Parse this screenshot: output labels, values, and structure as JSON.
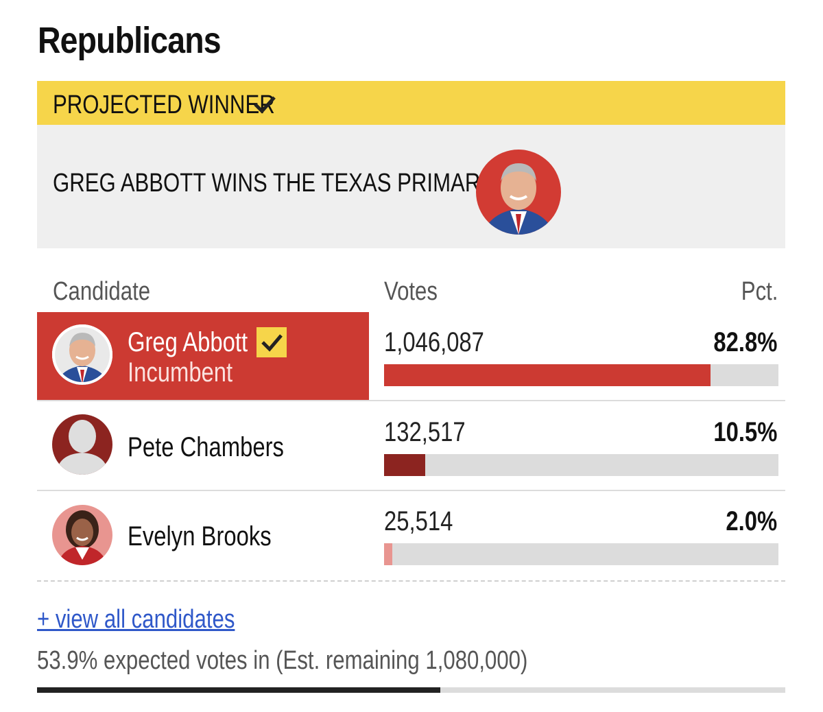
{
  "party_title": "Republicans",
  "banner": {
    "label": "PROJECTED WINNER",
    "icon": "checkmark-icon"
  },
  "headline": {
    "text": "GREG ABBOTT WINS THE TEXAS PRIMARY"
  },
  "table": {
    "headers": {
      "candidate": "Candidate",
      "votes": "Votes",
      "pct": "Pct."
    },
    "rows": [
      {
        "name": "Greg Abbott",
        "subtitle": "Incumbent",
        "votes": "1,046,087",
        "pct": "82.8%",
        "share": 82.8,
        "bar_color": "#cc3a32",
        "winner": true
      },
      {
        "name": "Pete Chambers",
        "subtitle": "",
        "votes": "132,517",
        "pct": "10.5%",
        "share": 10.5,
        "bar_color": "#8c2420",
        "winner": false
      },
      {
        "name": "Evelyn Brooks",
        "subtitle": "",
        "votes": "25,514",
        "pct": "2.0%",
        "share": 2.0,
        "bar_color": "#e89590",
        "winner": false
      }
    ]
  },
  "view_all": "+ view all candidates",
  "expected": {
    "text": "53.9% expected votes in (Est. remaining 1,080,000)",
    "fraction": 0.539
  },
  "colors": {
    "accent_yellow": "#f6d54a",
    "republican_red": "#cc3a32",
    "link_blue": "#2f58c9"
  }
}
